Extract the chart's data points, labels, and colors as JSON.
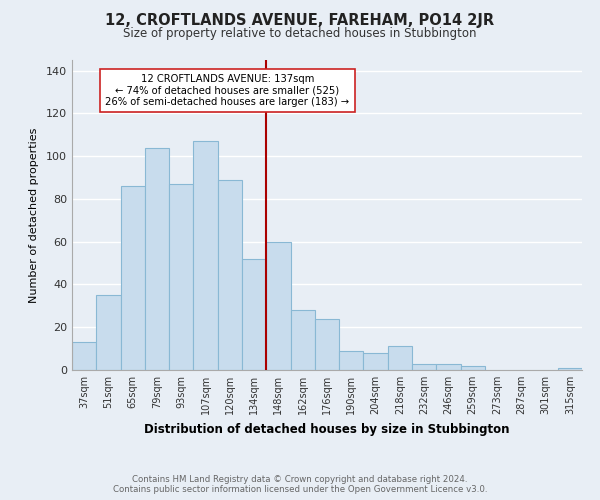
{
  "title_line1": "12, CROFTLANDS AVENUE, FAREHAM, PO14 2JR",
  "title_line2": "Size of property relative to detached houses in Stubbington",
  "xlabel": "Distribution of detached houses by size in Stubbington",
  "ylabel": "Number of detached properties",
  "bar_labels": [
    "37sqm",
    "51sqm",
    "65sqm",
    "79sqm",
    "93sqm",
    "107sqm",
    "120sqm",
    "134sqm",
    "148sqm",
    "162sqm",
    "176sqm",
    "190sqm",
    "204sqm",
    "218sqm",
    "232sqm",
    "246sqm",
    "259sqm",
    "273sqm",
    "287sqm",
    "301sqm",
    "315sqm"
  ],
  "bar_values": [
    13,
    35,
    86,
    104,
    87,
    107,
    89,
    52,
    60,
    28,
    24,
    9,
    8,
    11,
    3,
    3,
    2,
    0,
    0,
    0,
    1
  ],
  "bar_color": "#c8dced",
  "bar_edge_color": "#89b8d4",
  "vline_color": "#aa0000",
  "annotation_title": "12 CROFTLANDS AVENUE: 137sqm",
  "annotation_line1": "← 74% of detached houses are smaller (525)",
  "annotation_line2": "26% of semi-detached houses are larger (183) →",
  "annotation_box_color": "#ffffff",
  "annotation_box_edge": "#cc2222",
  "ylim": [
    0,
    145
  ],
  "yticks": [
    0,
    20,
    40,
    60,
    80,
    100,
    120,
    140
  ],
  "footer_line1": "Contains HM Land Registry data © Crown copyright and database right 2024.",
  "footer_line2": "Contains public sector information licensed under the Open Government Licence v3.0.",
  "background_color": "#e8eef5",
  "grid_color": "#ffffff",
  "vline_index": 7
}
